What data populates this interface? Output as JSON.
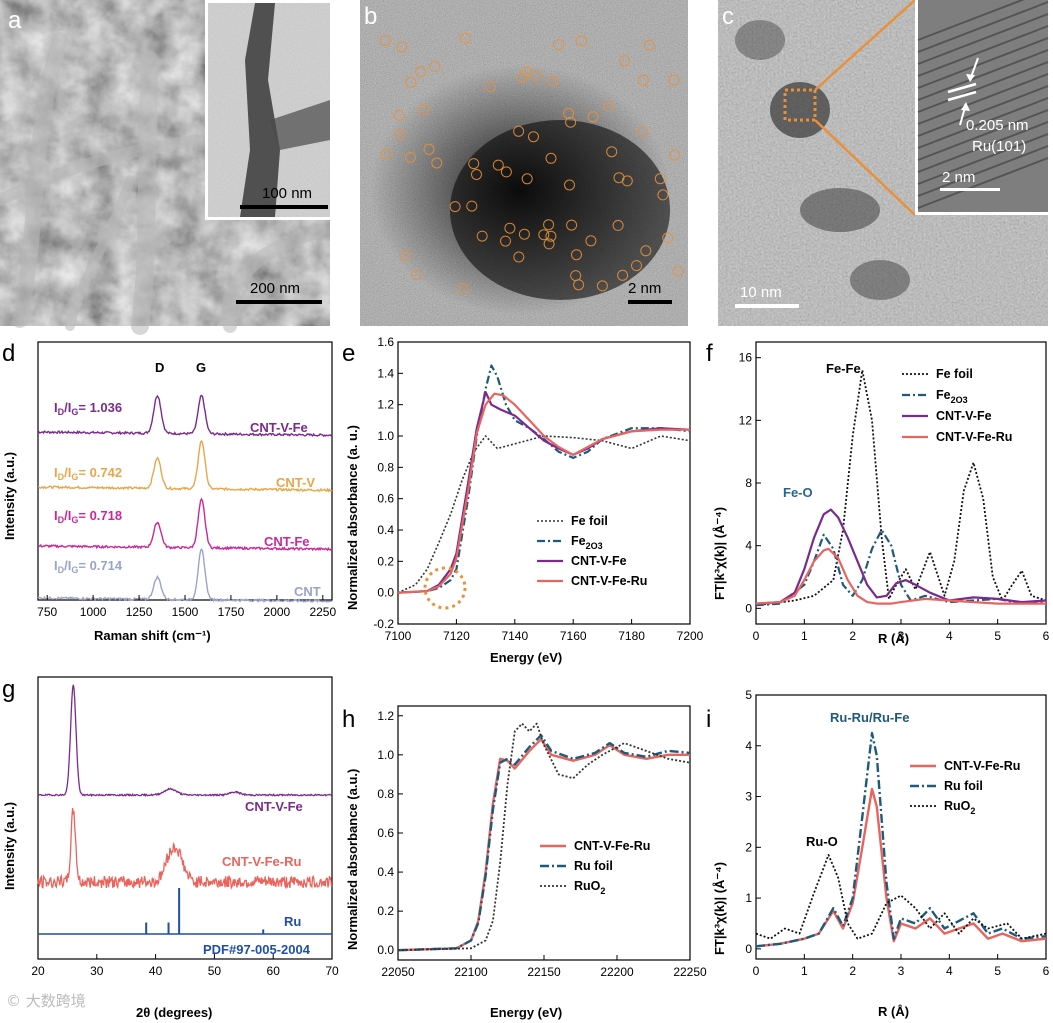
{
  "micrographs": {
    "a": {
      "label": "a",
      "scale_main": "200 nm",
      "scale_inset": "100 nm"
    },
    "b": {
      "label": "b",
      "scale": "2 nm"
    },
    "c": {
      "label": "c",
      "scale_main": "10 nm",
      "scale_inset": "2 nm",
      "lattice": "0.205 nm",
      "plane": "Ru(101)"
    }
  },
  "colors": {
    "cnt_v_fe": "#7b2a8e",
    "cnt_v": "#e8a64a",
    "cnt_fe": "#c8289c",
    "cnt": "#9aa3c8",
    "cnt_v_fe_ru": "#e8645c",
    "fe2o3": "#1e5a7c",
    "foil": "#333333",
    "fe_o_label": "#2a6496",
    "ru_ref": "#1f4fa8",
    "highlight": "#e8913a"
  },
  "chart_data": [
    {
      "panel": "d",
      "type": "line",
      "xlabel": "Raman shift (cm⁻¹)",
      "ylabel": "Intensity (a.u.)",
      "xlim": [
        700,
        2300
      ],
      "xticks": [
        750,
        1000,
        1250,
        1500,
        1750,
        2000,
        2250
      ],
      "peaks": {
        "D": 1350,
        "G": 1590
      },
      "series": [
        {
          "name": "CNT-V-Fe",
          "ratio": "I₀/Iᴳ= 1.036",
          "ratio_value": 1.036,
          "ratio_text": "= 1.036"
        },
        {
          "name": "CNT-V",
          "ratio_value": 0.742,
          "ratio_text": "= 0.742"
        },
        {
          "name": "CNT-Fe",
          "ratio_value": 0.718,
          "ratio_text": "= 0.718"
        },
        {
          "name": "CNT",
          "ratio_value": 0.714,
          "ratio_text": "= 0.714"
        }
      ]
    },
    {
      "panel": "e",
      "type": "line",
      "xlabel": "Energy  (eV)",
      "ylabel": "Normalized absorbance (a. u.)",
      "xlim": [
        7100,
        7200
      ],
      "ylim": [
        -0.2,
        1.6
      ],
      "xticks": [
        7100,
        7120,
        7140,
        7160,
        7180,
        7200
      ],
      "yticks": [
        -0.2,
        0.0,
        0.2,
        0.4,
        0.6,
        0.8,
        1.0,
        1.2,
        1.4,
        1.6
      ],
      "series": [
        {
          "name": "Fe foil",
          "x": [
            7100,
            7106,
            7110,
            7114,
            7118,
            7122,
            7126,
            7130,
            7134,
            7140,
            7150,
            7160,
            7170,
            7180,
            7190,
            7200
          ],
          "y": [
            0.0,
            0.05,
            0.15,
            0.32,
            0.5,
            0.72,
            0.9,
            1.0,
            0.92,
            0.95,
            1.0,
            0.99,
            0.97,
            0.92,
            1.0,
            0.97
          ]
        },
        {
          "name": "Fe2O3",
          "x": [
            7100,
            7110,
            7114,
            7118,
            7120,
            7124,
            7127,
            7130,
            7132,
            7134,
            7137,
            7140,
            7145,
            7150,
            7155,
            7160,
            7165,
            7170,
            7180,
            7190,
            7200
          ],
          "y": [
            0.0,
            0.01,
            0.03,
            0.08,
            0.15,
            0.6,
            1.0,
            1.3,
            1.45,
            1.38,
            1.2,
            1.1,
            1.05,
            0.98,
            0.9,
            0.86,
            0.9,
            0.98,
            1.05,
            1.05,
            1.03
          ]
        },
        {
          "name": "CNT-V-Fe",
          "x": [
            7100,
            7110,
            7114,
            7116,
            7118,
            7120,
            7124,
            7127,
            7130,
            7132,
            7135,
            7140,
            7145,
            7150,
            7155,
            7160,
            7165,
            7170,
            7180,
            7190,
            7200
          ],
          "y": [
            0.0,
            0.01,
            0.05,
            0.1,
            0.15,
            0.25,
            0.7,
            1.05,
            1.28,
            1.2,
            1.17,
            1.13,
            1.05,
            0.97,
            0.92,
            0.88,
            0.92,
            0.98,
            1.03,
            1.05,
            1.04
          ]
        },
        {
          "name": "CNT-V-Fe-Ru",
          "x": [
            7100,
            7110,
            7114,
            7116,
            7118,
            7120,
            7124,
            7127,
            7130,
            7133,
            7136,
            7140,
            7145,
            7150,
            7155,
            7160,
            7165,
            7170,
            7180,
            7190,
            7200
          ],
          "y": [
            0.0,
            0.01,
            0.04,
            0.08,
            0.12,
            0.22,
            0.65,
            1.02,
            1.2,
            1.27,
            1.26,
            1.2,
            1.1,
            1.0,
            0.93,
            0.88,
            0.93,
            0.98,
            1.03,
            1.04,
            1.04
          ]
        }
      ]
    },
    {
      "panel": "f",
      "type": "line",
      "xlabel": "R (Å)",
      "ylabel": "FT|k³χ(k)| (Å⁻⁴)",
      "xlim": [
        0,
        6
      ],
      "ylim": [
        -1,
        17
      ],
      "xticks": [
        0,
        1,
        2,
        3,
        4,
        5,
        6
      ],
      "yticks": [
        0,
        4,
        8,
        12,
        16
      ],
      "annotations": [
        "Fe-Fe",
        "Fe-O"
      ],
      "series": [
        {
          "name": "Fe foil",
          "x": [
            0,
            0.8,
            1.2,
            1.6,
            1.8,
            2.0,
            2.2,
            2.4,
            2.6,
            2.75,
            2.9,
            3.1,
            3.3,
            3.6,
            3.9,
            4.1,
            4.3,
            4.5,
            4.7,
            4.9,
            5.1,
            5.3,
            5.5,
            5.7,
            6.0
          ],
          "y": [
            0.2,
            0.5,
            0.8,
            1.8,
            5,
            11,
            15.2,
            12,
            4.5,
            0.6,
            1.5,
            2.5,
            1.2,
            3.6,
            0.8,
            3,
            7.5,
            9.3,
            7,
            2,
            0.5,
            1.5,
            2.4,
            0.8,
            0.5
          ]
        },
        {
          "name": "Fe2O3",
          "x": [
            0,
            0.5,
            1.0,
            1.2,
            1.4,
            1.6,
            1.8,
            2.0,
            2.2,
            2.4,
            2.6,
            2.8,
            3.0,
            3.2,
            3.5,
            4.0,
            4.5,
            5.0,
            5.5,
            6.0
          ],
          "y": [
            0.2,
            0.3,
            1.5,
            3,
            4.7,
            3.8,
            1.5,
            0.8,
            1.8,
            3.8,
            5,
            4,
            1.5,
            0.5,
            0.8,
            0.4,
            0.5,
            0.6,
            0.3,
            0.4
          ]
        },
        {
          "name": "CNT-V-Fe",
          "x": [
            0,
            0.5,
            0.8,
            1.0,
            1.2,
            1.4,
            1.55,
            1.7,
            1.9,
            2.1,
            2.3,
            2.5,
            2.7,
            2.9,
            3.1,
            3.3,
            3.6,
            4.0,
            4.5,
            5.0,
            5.5,
            6.0
          ],
          "y": [
            0.3,
            0.4,
            1.0,
            2.5,
            4.5,
            6.0,
            6.3,
            5.8,
            4.5,
            3.0,
            1.5,
            0.7,
            0.8,
            1.6,
            1.8,
            1.5,
            1.0,
            0.5,
            0.7,
            0.6,
            0.4,
            0.5
          ]
        },
        {
          "name": "CNT-V-Fe-Ru",
          "x": [
            0,
            0.5,
            0.8,
            1.0,
            1.2,
            1.4,
            1.5,
            1.7,
            1.9,
            2.1,
            2.3,
            2.5,
            2.8,
            3.0,
            3.5,
            4.0,
            4.5,
            5.0,
            5.5,
            6.0
          ],
          "y": [
            0.3,
            0.4,
            0.8,
            1.8,
            3.0,
            3.7,
            3.8,
            3.2,
            1.8,
            0.8,
            0.4,
            0.3,
            0.3,
            0.4,
            0.6,
            0.5,
            0.4,
            0.3,
            0.3,
            0.3
          ]
        }
      ]
    },
    {
      "panel": "g",
      "type": "line",
      "xlabel": "2θ (degrees)",
      "ylabel": "Intensity (a.u.)",
      "xlim": [
        20,
        70
      ],
      "xticks": [
        20,
        30,
        40,
        50,
        60,
        70
      ],
      "series": [
        {
          "name": "CNT-V-Fe",
          "peaks": [
            26,
            42.5,
            53.5
          ]
        },
        {
          "name": "CNT-V-Fe-Ru",
          "peaks": [
            26,
            43.5
          ]
        }
      ],
      "reference": {
        "name": "Ru",
        "card": "PDF#97-005-2004",
        "x": [
          38.4,
          42.2,
          44.0,
          58.3
        ],
        "rel": [
          0.25,
          0.25,
          1.0,
          0.1
        ]
      }
    },
    {
      "panel": "h",
      "type": "line",
      "xlabel": "Energy  (eV)",
      "ylabel": "Normalized absorbance (a.u.)",
      "xlim": [
        22050,
        22250
      ],
      "ylim": [
        -0.05,
        1.25
      ],
      "xticks": [
        22050,
        22100,
        22150,
        22200,
        22250
      ],
      "yticks": [
        0.0,
        0.2,
        0.4,
        0.6,
        0.8,
        1.0,
        1.2
      ],
      "series": [
        {
          "name": "CNT-V-Fe-Ru",
          "x": [
            22050,
            22090,
            22100,
            22105,
            22110,
            22115,
            22120,
            22125,
            22130,
            22140,
            22148,
            22155,
            22170,
            22185,
            22195,
            22205,
            22220,
            22235,
            22250
          ],
          "y": [
            0,
            0.01,
            0.05,
            0.15,
            0.4,
            0.75,
            0.98,
            0.97,
            0.93,
            1.02,
            1.08,
            1.0,
            0.97,
            1.0,
            1.05,
            1.0,
            0.98,
            1.0,
            1.0
          ]
        },
        {
          "name": "Ru foil",
          "x": [
            22050,
            22090,
            22100,
            22105,
            22110,
            22115,
            22120,
            22125,
            22130,
            22140,
            22148,
            22155,
            22170,
            22185,
            22195,
            22205,
            22220,
            22235,
            22250
          ],
          "y": [
            0,
            0.01,
            0.05,
            0.14,
            0.38,
            0.72,
            0.96,
            0.98,
            0.95,
            1.04,
            1.1,
            1.02,
            0.98,
            1.01,
            1.06,
            1.01,
            0.99,
            1.02,
            1.01
          ]
        },
        {
          "name": "RuO2",
          "x": [
            22050,
            22100,
            22110,
            22115,
            22120,
            22125,
            22130,
            22135,
            22140,
            22145,
            22150,
            22160,
            22170,
            22180,
            22190,
            22205,
            22220,
            22235,
            22250
          ],
          "y": [
            0,
            0.01,
            0.05,
            0.15,
            0.45,
            0.85,
            1.12,
            1.16,
            1.12,
            1.16,
            1.05,
            0.9,
            0.88,
            0.95,
            1.0,
            1.06,
            1.02,
            0.98,
            0.96
          ]
        }
      ]
    },
    {
      "panel": "i",
      "type": "line",
      "xlabel": "R (Å)",
      "ylabel": "FT|k³χ(k)| (Å⁻⁴)",
      "xlim": [
        0,
        6
      ],
      "ylim": [
        -0.2,
        5
      ],
      "xticks": [
        0,
        1,
        2,
        3,
        4,
        5,
        6
      ],
      "yticks": [
        0,
        1,
        2,
        3,
        4,
        5
      ],
      "annotations": [
        "Ru-Ru/Ru-Fe",
        "Ru-O"
      ],
      "series": [
        {
          "name": "CNT-V-Fe-Ru",
          "x": [
            0,
            0.5,
            1.0,
            1.3,
            1.6,
            1.8,
            2.0,
            2.2,
            2.4,
            2.5,
            2.7,
            2.85,
            3.0,
            3.3,
            3.6,
            3.9,
            4.2,
            4.5,
            4.8,
            5.1,
            5.5,
            6.0
          ],
          "y": [
            0.05,
            0.1,
            0.2,
            0.3,
            0.75,
            0.4,
            0.9,
            2.0,
            3.15,
            2.8,
            1.0,
            0.15,
            0.5,
            0.4,
            0.6,
            0.3,
            0.4,
            0.5,
            0.2,
            0.3,
            0.15,
            0.2
          ]
        },
        {
          "name": "Ru foil",
          "x": [
            0,
            0.5,
            1.0,
            1.3,
            1.6,
            1.8,
            2.0,
            2.2,
            2.4,
            2.5,
            2.7,
            2.85,
            3.0,
            3.3,
            3.6,
            3.9,
            4.2,
            4.5,
            4.8,
            5.1,
            5.5,
            6.0
          ],
          "y": [
            0.05,
            0.1,
            0.2,
            0.3,
            0.8,
            0.45,
            1.0,
            2.6,
            4.25,
            3.8,
            1.3,
            0.2,
            0.6,
            0.5,
            0.8,
            0.4,
            0.55,
            0.7,
            0.3,
            0.4,
            0.2,
            0.25
          ]
        },
        {
          "name": "RuO2",
          "x": [
            0,
            0.3,
            0.6,
            0.9,
            1.2,
            1.5,
            1.7,
            1.9,
            2.1,
            2.4,
            2.7,
            3.0,
            3.3,
            3.6,
            3.9,
            4.2,
            4.5,
            4.8,
            5.2,
            5.5,
            6.0
          ],
          "y": [
            0.3,
            0.2,
            0.4,
            0.3,
            1.1,
            1.85,
            1.4,
            0.5,
            0.2,
            0.3,
            0.9,
            1.05,
            0.8,
            0.4,
            0.7,
            0.3,
            0.6,
            0.4,
            0.5,
            0.2,
            0.3
          ]
        }
      ]
    }
  ],
  "watermark": "© 大数跨境"
}
